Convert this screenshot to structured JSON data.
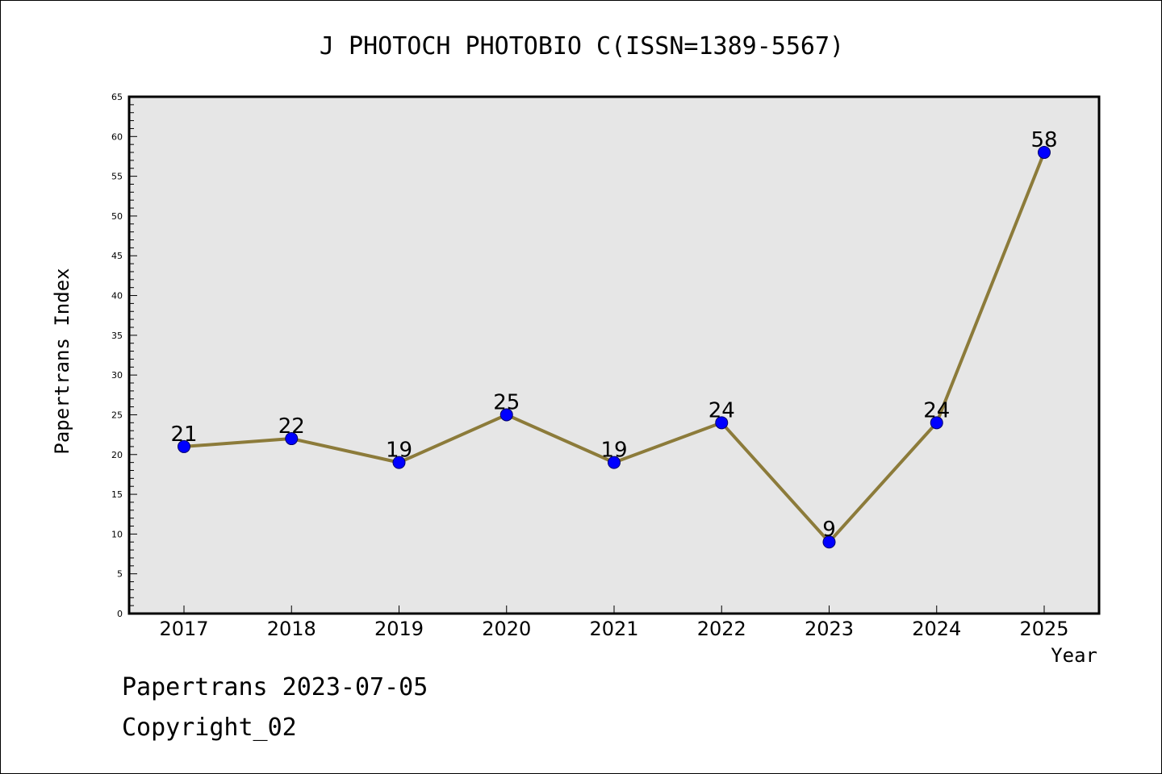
{
  "chart_data": {
    "type": "line",
    "title": "J PHOTOCH PHOTOBIO C(ISSN=1389-5567)",
    "xlabel": "Year",
    "ylabel": "Papertrans Index",
    "categories": [
      "2017",
      "2018",
      "2019",
      "2020",
      "2021",
      "2022",
      "2023",
      "2024",
      "2025"
    ],
    "series": [
      {
        "values": [
          21,
          22,
          19,
          25,
          19,
          24,
          9,
          24,
          58
        ]
      }
    ],
    "ylim": [
      0,
      65
    ],
    "yticks": [
      0,
      5,
      10,
      15,
      20,
      25,
      30,
      35,
      40,
      45,
      50,
      55,
      60,
      65
    ],
    "grid": false,
    "legend": "none",
    "line_color": "#8c7b3a",
    "marker_color": "#0000ff",
    "plot_background": "#e6e6e6"
  },
  "footer": {
    "line1": "Papertrans 2023-07-05",
    "line2": "Copyright_02"
  }
}
